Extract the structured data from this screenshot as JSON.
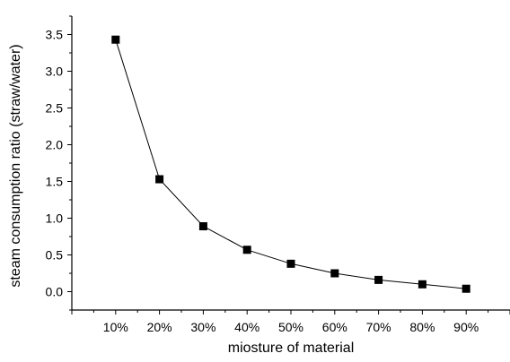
{
  "chart_data": {
    "type": "line",
    "xlabel": "miosture of  material",
    "ylabel": "steam consumption ratio (straw/water)",
    "categories": [
      "10%",
      "20%",
      "30%",
      "40%",
      "50%",
      "60%",
      "70%",
      "80%",
      "90%"
    ],
    "x": [
      10,
      20,
      30,
      40,
      50,
      60,
      70,
      80,
      90
    ],
    "xlim": [
      0,
      100
    ],
    "ylim": [
      -0.25,
      3.75
    ],
    "yticks": [
      "0.0",
      "0.5",
      "1.0",
      "1.5",
      "2.0",
      "2.5",
      "3.0",
      "3.5"
    ],
    "series": [
      {
        "values": [
          3.43,
          1.53,
          0.89,
          0.57,
          0.38,
          0.25,
          0.16,
          0.1,
          0.04
        ],
        "color": "#000000",
        "marker": "square"
      }
    ],
    "grid": false,
    "legend": "none"
  }
}
